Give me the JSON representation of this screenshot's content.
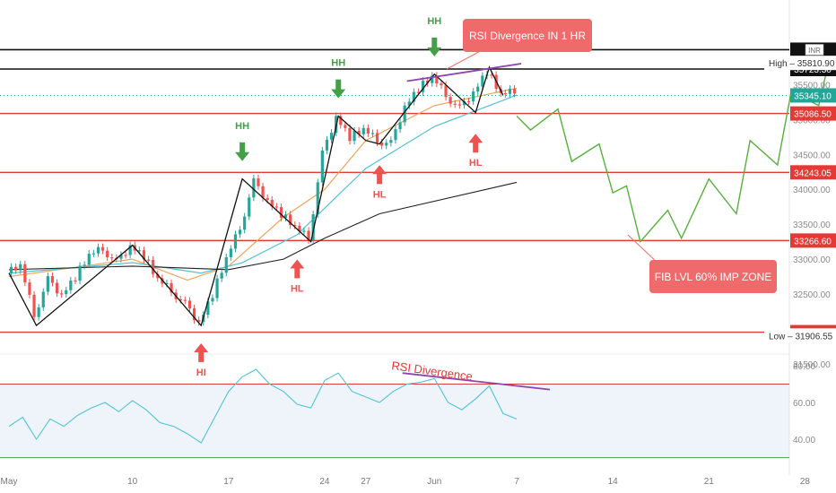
{
  "currency_badge": "INR",
  "chart_data": [
    {
      "type": "candlestick",
      "title": "",
      "x_ticks": [
        "May",
        "10",
        "17",
        "24",
        "27",
        "Jun",
        "7",
        "14",
        "21",
        "28"
      ],
      "y_ticks": [
        "35500.00",
        "35000.00",
        "34500.00",
        "34000.00",
        "33500.00",
        "33000.00",
        "32500.00",
        "32000.00",
        "31500.00"
      ],
      "ylim": [
        31400,
        36200
      ],
      "price_path": [
        {
          "d": "May 1",
          "v": 32800
        },
        {
          "d": "May 2",
          "v": 32900
        },
        {
          "d": "May 3",
          "v": 32200
        },
        {
          "d": "May 4",
          "v": 32700
        },
        {
          "d": "May 5",
          "v": 32500
        },
        {
          "d": "May 6",
          "v": 32750
        },
        {
          "d": "May 7",
          "v": 33050
        },
        {
          "d": "May 8",
          "v": 33150
        },
        {
          "d": "May 9",
          "v": 32950
        },
        {
          "d": "May 10",
          "v": 33200
        },
        {
          "d": "May 11",
          "v": 33050
        },
        {
          "d": "May 12",
          "v": 32700
        },
        {
          "d": "May 13",
          "v": 32550
        },
        {
          "d": "May 14",
          "v": 32350
        },
        {
          "d": "May 15",
          "v": 32100
        },
        {
          "d": "May 16",
          "v": 32500
        },
        {
          "d": "May 17",
          "v": 33000
        },
        {
          "d": "May 18",
          "v": 33450
        },
        {
          "d": "May 19",
          "v": 34100
        },
        {
          "d": "May 20",
          "v": 33850
        },
        {
          "d": "May 21",
          "v": 33650
        },
        {
          "d": "May 22",
          "v": 33450
        },
        {
          "d": "May 23",
          "v": 33300
        },
        {
          "d": "May 24",
          "v": 34500
        },
        {
          "d": "May 25",
          "v": 35050
        },
        {
          "d": "May 26",
          "v": 34750
        },
        {
          "d": "May 27",
          "v": 34850
        },
        {
          "d": "May 28",
          "v": 34700
        },
        {
          "d": "May 29",
          "v": 34650
        },
        {
          "d": "May 30",
          "v": 35200
        },
        {
          "d": "May 31",
          "v": 35450
        },
        {
          "d": "Jun 1",
          "v": 35600
        },
        {
          "d": "Jun 2",
          "v": 35350
        },
        {
          "d": "Jun 3",
          "v": 35150
        },
        {
          "d": "Jun 4",
          "v": 35400
        },
        {
          "d": "Jun 5",
          "v": 35700
        },
        {
          "d": "Jun 6",
          "v": 35350
        },
        {
          "d": "Jun 7",
          "v": 35400
        }
      ],
      "moving_averages": [
        {
          "color": "#f4a259",
          "values": [
            {
              "d": "May 1",
              "v": 32750
            },
            {
              "d": "May 10",
              "v": 33000
            },
            {
              "d": "May 14",
              "v": 32700
            },
            {
              "d": "May 17",
              "v": 32900
            },
            {
              "d": "May 21",
              "v": 33600
            },
            {
              "d": "May 24",
              "v": 34000
            },
            {
              "d": "May 27",
              "v": 34700
            },
            {
              "d": "Jun 1",
              "v": 35200
            },
            {
              "d": "Jun 7",
              "v": 35450
            }
          ]
        },
        {
          "color": "#4fc3d6",
          "values": [
            {
              "d": "May 1",
              "v": 32800
            },
            {
              "d": "May 10",
              "v": 32950
            },
            {
              "d": "May 15",
              "v": 32800
            },
            {
              "d": "May 18",
              "v": 32950
            },
            {
              "d": "May 22",
              "v": 33350
            },
            {
              "d": "May 27",
              "v": 34300
            },
            {
              "d": "Jun 1",
              "v": 34900
            },
            {
              "d": "Jun 7",
              "v": 35350
            }
          ]
        },
        {
          "color": "#222222",
          "values": [
            {
              "d": "May 1",
              "v": 32850
            },
            {
              "d": "May 10",
              "v": 32900
            },
            {
              "d": "May 17",
              "v": 32850
            },
            {
              "d": "May 21",
              "v": 33000
            },
            {
              "d": "May 24",
              "v": 33300
            },
            {
              "d": "May 28",
              "v": 33650
            },
            {
              "d": "Jun 7",
              "v": 34100
            }
          ]
        }
      ],
      "projection": [
        {
          "d": "Jun 7",
          "v": 35050
        },
        {
          "d": "Jun 8",
          "v": 34850
        },
        {
          "d": "Jun 10",
          "v": 35150
        },
        {
          "d": "Jun 11",
          "v": 34400
        },
        {
          "d": "Jun 13",
          "v": 34650
        },
        {
          "d": "Jun 14",
          "v": 33950
        },
        {
          "d": "Jun 15",
          "v": 34050
        },
        {
          "d": "Jun 16",
          "v": 33250
        },
        {
          "d": "Jun 18",
          "v": 33700
        },
        {
          "d": "Jun 19",
          "v": 33300
        },
        {
          "d": "Jun 21",
          "v": 34150
        },
        {
          "d": "Jun 23",
          "v": 33650
        },
        {
          "d": "Jun 24",
          "v": 34700
        },
        {
          "d": "Jun 26",
          "v": 34350
        },
        {
          "d": "Jun 27",
          "v": 35400
        },
        {
          "d": "Jun 29",
          "v": 35200
        },
        {
          "d": "Jun 30",
          "v": 36050
        }
      ],
      "levels": [
        {
          "value": "36000",
          "label": "36",
          "style": "black"
        },
        {
          "value": "35723.30",
          "label": "35723.30",
          "style": "black"
        },
        {
          "value": "35086.50",
          "label": "35086.50",
          "style": "red"
        },
        {
          "value": "34243.05",
          "label": "34243.05",
          "style": "red"
        },
        {
          "value": "33266.60",
          "label": "33266.60",
          "style": "red"
        },
        {
          "value": "31955.15",
          "label": "31955.15",
          "style": "red"
        }
      ],
      "current_price": {
        "value": "35345.10",
        "label": "35345.10",
        "color": "#22a698"
      },
      "high": {
        "label": "High",
        "value": "35810.90"
      },
      "low": {
        "label": "Low",
        "value": "31906.55"
      },
      "annotations": [
        {
          "text": "HH",
          "kind": "top",
          "d": "May 18",
          "v": 34250
        },
        {
          "text": "HH",
          "kind": "top",
          "d": "May 25",
          "v": 35150
        },
        {
          "text": "HH",
          "kind": "top",
          "d": "Jun 1",
          "v": 35750
        },
        {
          "text": "HL",
          "kind": "bottom",
          "d": "May 22",
          "v": 33150
        },
        {
          "text": "HL",
          "kind": "bottom",
          "d": "May 28",
          "v": 34500
        },
        {
          "text": "HL",
          "kind": "bottom",
          "d": "Jun 4",
          "v": 34950
        },
        {
          "text": "HI",
          "kind": "bottom",
          "d": "May 15",
          "v": 31950
        }
      ],
      "callouts": {
        "rsi_1hr": "RSI Divergence IN 1 HR",
        "fib": "FIB LVL 60% IMP ZONE"
      },
      "colors": {
        "up": "#26a69a",
        "down": "#ef5350",
        "projection": "#55b13a",
        "divergence": "#8e44ad",
        "level": "#e53935"
      }
    },
    {
      "type": "line",
      "title": "",
      "y_ticks": [
        "80.00",
        "60.00",
        "40.00"
      ],
      "ylim": [
        35,
        85
      ],
      "overbought": 70,
      "oversold": 30,
      "divergence_label": "RSI Divergence",
      "series": [
        {
          "color": "#4fc3d6",
          "values": [
            {
              "d": "May 1",
              "v": 47
            },
            {
              "d": "May 2",
              "v": 52
            },
            {
              "d": "May 3",
              "v": 40
            },
            {
              "d": "May 4",
              "v": 51
            },
            {
              "d": "May 5",
              "v": 47
            },
            {
              "d": "May 6",
              "v": 53
            },
            {
              "d": "May 7",
              "v": 57
            },
            {
              "d": "May 8",
              "v": 60
            },
            {
              "d": "May 9",
              "v": 55
            },
            {
              "d": "May 10",
              "v": 61
            },
            {
              "d": "May 11",
              "v": 56
            },
            {
              "d": "May 12",
              "v": 49
            },
            {
              "d": "May 13",
              "v": 47
            },
            {
              "d": "May 14",
              "v": 43
            },
            {
              "d": "May 15",
              "v": 38
            },
            {
              "d": "May 16",
              "v": 52
            },
            {
              "d": "May 17",
              "v": 66
            },
            {
              "d": "May 18",
              "v": 74
            },
            {
              "d": "May 19",
              "v": 78
            },
            {
              "d": "May 20",
              "v": 70
            },
            {
              "d": "May 21",
              "v": 66
            },
            {
              "d": "May 22",
              "v": 59
            },
            {
              "d": "May 23",
              "v": 57
            },
            {
              "d": "May 24",
              "v": 72
            },
            {
              "d": "May 25",
              "v": 76
            },
            {
              "d": "May 26",
              "v": 66
            },
            {
              "d": "May 27",
              "v": 63
            },
            {
              "d": "May 28",
              "v": 60
            },
            {
              "d": "May 29",
              "v": 66
            },
            {
              "d": "May 30",
              "v": 70
            },
            {
              "d": "May 31",
              "v": 71
            },
            {
              "d": "Jun 1",
              "v": 73
            },
            {
              "d": "Jun 2",
              "v": 60
            },
            {
              "d": "Jun 3",
              "v": 56
            },
            {
              "d": "Jun 4",
              "v": 62
            },
            {
              "d": "Jun 5",
              "v": 69
            },
            {
              "d": "Jun 6",
              "v": 54
            },
            {
              "d": "Jun 7",
              "v": 51
            }
          ]
        }
      ]
    }
  ]
}
